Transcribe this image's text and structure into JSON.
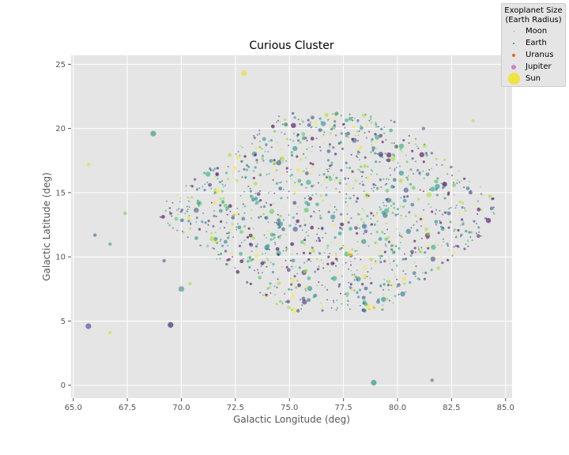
{
  "chart_data": {
    "type": "scatter",
    "title": "Curious Cluster",
    "xlabel": "Galactic Longitude (deg)",
    "ylabel": "Galactic Latitude (deg)",
    "xlim": [
      64.9,
      85.3
    ],
    "ylim": [
      -1.0,
      25.7
    ],
    "xticks": [
      65.0,
      67.5,
      70.0,
      72.5,
      75.0,
      77.5,
      80.0,
      82.5,
      85.0
    ],
    "xtick_labels": [
      "65.0",
      "67.5",
      "70.0",
      "72.5",
      "75.0",
      "77.5",
      "80.0",
      "82.5",
      "85.0"
    ],
    "yticks": [
      0,
      5,
      10,
      15,
      20,
      25
    ],
    "ytick_labels": [
      "0",
      "5",
      "10",
      "15",
      "20",
      "25"
    ],
    "grid": true,
    "colormap": "viridis",
    "background_color": "#e5e5e5",
    "cluster": {
      "description_note": "dense cloud of ~1500 small exoplanet markers",
      "x_range": [
        69.0,
        84.5
      ],
      "y_range": [
        5.8,
        21.2
      ],
      "center": [
        77.0,
        13.5
      ]
    },
    "outliers": [
      {
        "x": 72.9,
        "y": 24.3,
        "size": "Jupiter",
        "color": "#e0e34a"
      },
      {
        "x": 68.7,
        "y": 19.6,
        "size": "Jupiter",
        "color": "#4fa08e"
      },
      {
        "x": 65.7,
        "y": 17.2,
        "size": "Earth",
        "color": "#e2e34f"
      },
      {
        "x": 67.4,
        "y": 13.4,
        "size": "Earth",
        "color": "#8bd26a"
      },
      {
        "x": 66.0,
        "y": 11.7,
        "size": "Earth",
        "color": "#5a7f9b"
      },
      {
        "x": 66.7,
        "y": 11.0,
        "size": "Earth",
        "color": "#55b08d"
      },
      {
        "x": 69.2,
        "y": 9.7,
        "size": "Earth",
        "color": "#6c6ca3"
      },
      {
        "x": 70.0,
        "y": 7.5,
        "size": "Jupiter",
        "color": "#5f9ea0"
      },
      {
        "x": 70.4,
        "y": 7.9,
        "size": "Earth",
        "color": "#b8de59"
      },
      {
        "x": 65.7,
        "y": 4.6,
        "size": "Jupiter",
        "color": "#6a5a9e"
      },
      {
        "x": 66.7,
        "y": 4.1,
        "size": "Earth",
        "color": "#d5e04a"
      },
      {
        "x": 69.5,
        "y": 4.7,
        "size": "Jupiter",
        "color": "#4a3a7e"
      },
      {
        "x": 78.9,
        "y": 0.2,
        "size": "Jupiter",
        "color": "#3f9a8c"
      },
      {
        "x": 81.6,
        "y": 0.4,
        "size": "Earth",
        "color": "#6f7fa0"
      },
      {
        "x": 83.5,
        "y": 20.6,
        "size": "Earth",
        "color": "#c7de5a"
      },
      {
        "x": 81.2,
        "y": 20.0,
        "size": "Earth",
        "color": "#7a6fae"
      },
      {
        "x": 75.4,
        "y": 5.8,
        "size": "Earth",
        "color": "#5a6a9b"
      }
    ]
  },
  "legend": {
    "title_line1": "Exoplanet Size",
    "title_line2": "(Earth Radius)",
    "items": [
      {
        "label": "Moon",
        "color": "#1f77b4",
        "size": 1
      },
      {
        "label": "Earth",
        "color": "#1f8f8a",
        "size": 2
      },
      {
        "label": "Uranus",
        "color": "#e8681c",
        "size": 4
      },
      {
        "label": "Jupiter",
        "color": "#d07fc6",
        "size": 6
      },
      {
        "label": "Sun",
        "color": "#f1e240",
        "size": 15
      }
    ]
  }
}
